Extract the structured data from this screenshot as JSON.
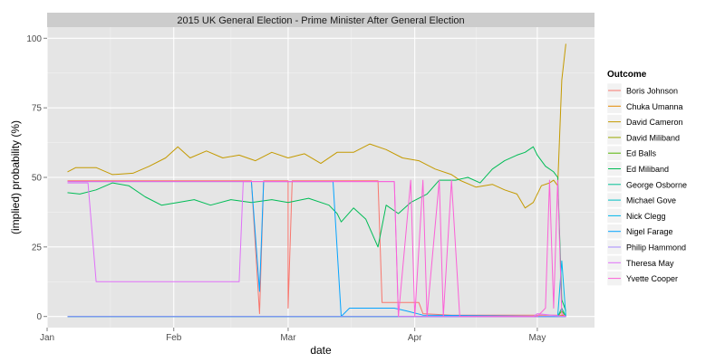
{
  "chart_data": {
    "type": "line",
    "title": "2015 UK General Election - Prime Minister After General Election",
    "xlabel": "date",
    "ylabel": "(implied) probability (%)",
    "x_ticks": [
      "Jan",
      "Feb",
      "Mar",
      "Apr",
      "May"
    ],
    "x_tick_dates": [
      "2015-01-01",
      "2015-02-01",
      "2015-03-01",
      "2015-04-01",
      "2015-05-01"
    ],
    "xlim": [
      "2015-01-01",
      "2015-05-15"
    ],
    "y_ticks": [
      0,
      25,
      50,
      75,
      100
    ],
    "ylim": [
      -4,
      104
    ],
    "grid": true,
    "legend_position": "right",
    "legend_title": "Outcome",
    "colors": {
      "panel": "#e5e5e5",
      "grid_major": "#ffffff",
      "grid_minor": "#f2f2f2",
      "strip": "#cccccc"
    },
    "series": [
      {
        "name": "Boris Johnson",
        "color": "#F8766D",
        "values": [
          [
            "2015-01-06",
            48.8
          ],
          [
            "2015-02-20",
            48.8
          ],
          [
            "2015-02-22",
            1
          ],
          [
            "2015-02-23",
            48.8
          ],
          [
            "2015-03-01",
            48.8
          ],
          [
            "2015-03-01",
            3
          ],
          [
            "2015-03-02",
            48.8
          ],
          [
            "2015-03-23",
            48.8
          ],
          [
            "2015-03-24",
            5
          ],
          [
            "2015-04-02",
            5
          ],
          [
            "2015-04-03",
            1
          ],
          [
            "2015-04-10",
            0.5
          ],
          [
            "2015-05-08",
            0.5
          ]
        ]
      },
      {
        "name": "Chuka Umanna",
        "color": "#E38900",
        "values": [
          [
            "2015-01-06",
            0
          ],
          [
            "2015-05-06",
            0
          ],
          [
            "2015-05-07",
            0.5
          ],
          [
            "2015-05-08",
            0
          ]
        ]
      },
      {
        "name": "David Cameron",
        "color": "#C49A00",
        "values": [
          [
            "2015-01-06",
            52
          ],
          [
            "2015-01-08",
            53.5
          ],
          [
            "2015-01-13",
            53.5
          ],
          [
            "2015-01-17",
            51
          ],
          [
            "2015-01-22",
            51.5
          ],
          [
            "2015-01-26",
            54
          ],
          [
            "2015-01-30",
            57
          ],
          [
            "2015-02-02",
            61
          ],
          [
            "2015-02-05",
            57
          ],
          [
            "2015-02-09",
            59.5
          ],
          [
            "2015-02-13",
            57
          ],
          [
            "2015-02-17",
            58
          ],
          [
            "2015-02-21",
            56
          ],
          [
            "2015-02-25",
            59
          ],
          [
            "2015-03-01",
            57
          ],
          [
            "2015-03-05",
            58.5
          ],
          [
            "2015-03-09",
            55
          ],
          [
            "2015-03-13",
            59
          ],
          [
            "2015-03-17",
            59
          ],
          [
            "2015-03-21",
            62
          ],
          [
            "2015-03-25",
            60
          ],
          [
            "2015-03-29",
            57
          ],
          [
            "2015-04-02",
            56
          ],
          [
            "2015-04-06",
            53
          ],
          [
            "2015-04-10",
            51
          ],
          [
            "2015-04-12",
            49
          ],
          [
            "2015-04-16",
            46.5
          ],
          [
            "2015-04-20",
            47.5
          ],
          [
            "2015-04-23",
            45.5
          ],
          [
            "2015-04-26",
            44
          ],
          [
            "2015-04-28",
            39
          ],
          [
            "2015-04-30",
            41
          ],
          [
            "2015-05-02",
            47
          ],
          [
            "2015-05-04",
            48
          ],
          [
            "2015-05-05",
            49
          ],
          [
            "2015-05-06",
            47
          ],
          [
            "2015-05-07",
            85
          ],
          [
            "2015-05-08",
            98
          ]
        ]
      },
      {
        "name": "David Miliband",
        "color": "#99A800",
        "values": [
          [
            "2015-01-06",
            0
          ],
          [
            "2015-05-08",
            0
          ]
        ]
      },
      {
        "name": "Ed Balls",
        "color": "#53B400",
        "values": [
          [
            "2015-01-06",
            0
          ],
          [
            "2015-05-06",
            0
          ],
          [
            "2015-05-07",
            2
          ],
          [
            "2015-05-08",
            0
          ]
        ]
      },
      {
        "name": "Ed Miliband",
        "color": "#00BC56",
        "values": [
          [
            "2015-01-06",
            44.5
          ],
          [
            "2015-01-09",
            44
          ],
          [
            "2015-01-13",
            45.5
          ],
          [
            "2015-01-17",
            48
          ],
          [
            "2015-01-21",
            47
          ],
          [
            "2015-01-25",
            43
          ],
          [
            "2015-01-29",
            40
          ],
          [
            "2015-02-02",
            41
          ],
          [
            "2015-02-06",
            42
          ],
          [
            "2015-02-10",
            40
          ],
          [
            "2015-02-15",
            42
          ],
          [
            "2015-02-20",
            41
          ],
          [
            "2015-02-25",
            42
          ],
          [
            "2015-03-01",
            41
          ],
          [
            "2015-03-06",
            42.5
          ],
          [
            "2015-03-11",
            40
          ],
          [
            "2015-03-13",
            37
          ],
          [
            "2015-03-14",
            34
          ],
          [
            "2015-03-17",
            39
          ],
          [
            "2015-03-20",
            35
          ],
          [
            "2015-03-23",
            25
          ],
          [
            "2015-03-25",
            40
          ],
          [
            "2015-03-28",
            37
          ],
          [
            "2015-03-31",
            41
          ],
          [
            "2015-04-04",
            44
          ],
          [
            "2015-04-07",
            49
          ],
          [
            "2015-04-11",
            49
          ],
          [
            "2015-04-14",
            50
          ],
          [
            "2015-04-17",
            48
          ],
          [
            "2015-04-20",
            53
          ],
          [
            "2015-04-23",
            56
          ],
          [
            "2015-04-26",
            58
          ],
          [
            "2015-04-28",
            59
          ],
          [
            "2015-04-30",
            61
          ],
          [
            "2015-05-01",
            58
          ],
          [
            "2015-05-03",
            54
          ],
          [
            "2015-05-05",
            52
          ],
          [
            "2015-05-06",
            50
          ],
          [
            "2015-05-07",
            6
          ],
          [
            "2015-05-08",
            2
          ]
        ]
      },
      {
        "name": "George Osborne",
        "color": "#00C094",
        "values": [
          [
            "2015-01-06",
            0
          ],
          [
            "2015-05-06",
            0
          ],
          [
            "2015-05-07",
            3
          ],
          [
            "2015-05-08",
            0
          ]
        ]
      },
      {
        "name": "Michael Gove",
        "color": "#00BFC4",
        "values": [
          [
            "2015-01-06",
            0
          ],
          [
            "2015-05-08",
            0
          ]
        ]
      },
      {
        "name": "Nick Clegg",
        "color": "#00B6EB",
        "values": [
          [
            "2015-01-06",
            0
          ],
          [
            "2015-05-06",
            0
          ],
          [
            "2015-05-07",
            20
          ],
          [
            "2015-05-08",
            0
          ]
        ]
      },
      {
        "name": "Nigel Farage",
        "color": "#06A4FF",
        "values": [
          [
            "2015-01-06",
            48.5
          ],
          [
            "2015-02-20",
            48.5
          ],
          [
            "2015-02-22",
            9
          ],
          [
            "2015-02-23",
            48.5
          ],
          [
            "2015-03-12",
            48.5
          ],
          [
            "2015-03-14",
            0
          ],
          [
            "2015-03-16",
            3
          ],
          [
            "2015-03-27",
            3
          ],
          [
            "2015-03-30",
            2
          ],
          [
            "2015-04-03",
            0.5
          ],
          [
            "2015-05-08",
            0
          ]
        ]
      },
      {
        "name": "Philip Hammond",
        "color": "#A58AFF",
        "values": [
          [
            "2015-01-06",
            0
          ],
          [
            "2015-05-08",
            0
          ]
        ]
      },
      {
        "name": "Theresa May",
        "color": "#DF70F8",
        "values": [
          [
            "2015-01-06",
            48
          ],
          [
            "2015-01-11",
            48
          ],
          [
            "2015-01-13",
            12.5
          ],
          [
            "2015-02-17",
            12.5
          ],
          [
            "2015-02-18",
            48.5
          ],
          [
            "2015-03-27",
            48.5
          ],
          [
            "2015-03-28",
            0
          ],
          [
            "2015-04-30",
            0
          ],
          [
            "2015-05-01",
            1
          ],
          [
            "2015-05-08",
            0
          ]
        ]
      },
      {
        "name": "Yvette Cooper",
        "color": "#FB61D7",
        "values": [
          [
            "2015-01-06",
            48.5
          ],
          [
            "2015-01-09",
            48.5
          ],
          [
            "2015-02-22",
            48.5
          ],
          [
            "2015-03-27",
            48.5
          ],
          [
            "2015-03-28",
            0
          ],
          [
            "2015-03-31",
            49
          ],
          [
            "2015-04-01",
            0
          ],
          [
            "2015-04-03",
            49
          ],
          [
            "2015-04-04",
            0
          ],
          [
            "2015-04-07",
            49
          ],
          [
            "2015-04-08",
            0
          ],
          [
            "2015-04-10",
            49
          ],
          [
            "2015-04-12",
            0
          ],
          [
            "2015-04-14",
            0
          ],
          [
            "2015-05-01",
            0
          ],
          [
            "2015-05-03",
            3
          ],
          [
            "2015-05-04",
            49
          ],
          [
            "2015-05-05",
            3
          ],
          [
            "2015-05-06",
            49
          ],
          [
            "2015-05-07",
            1
          ],
          [
            "2015-05-08",
            0
          ]
        ]
      }
    ]
  }
}
